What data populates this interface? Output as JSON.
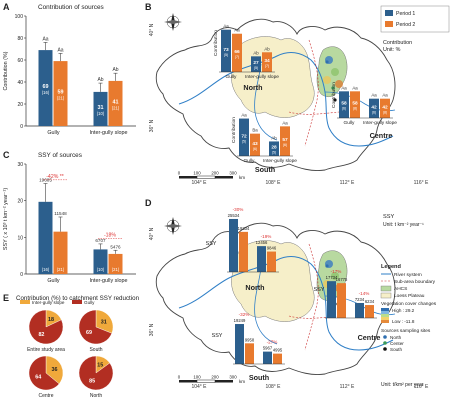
{
  "panels": {
    "A": {
      "letter": "A",
      "title": "Contribution of sources",
      "ylabel": "Contribution (%)",
      "categories": [
        "Gully",
        "Inter-gully slope"
      ],
      "yticks": [
        "0",
        "20",
        "40",
        "60",
        "80",
        "100"
      ]
    },
    "B": {
      "letter": "B",
      "legend": [
        "Period 1",
        "Period 2"
      ],
      "unit_title": "Contribution",
      "unit": "Unit: %",
      "regions": [
        "North",
        "Centre",
        "South"
      ],
      "bar_label": "Contribution",
      "lon_ticks": [
        "104° E",
        "108° E",
        "112° E",
        "116° E"
      ],
      "lat_ticks": [
        "40° N",
        "36° N"
      ],
      "scale_ticks": [
        "0",
        "100",
        "200",
        "300"
      ],
      "scale_unit": "km",
      "gully_label": "Gully",
      "slope_label": "Inter-gully slope"
    },
    "C": {
      "letter": "C",
      "title": "SSY of sources",
      "ylabel": "SSY ( x 10³ t km⁻² year⁻¹)",
      "categories": [
        "Gully",
        "Inter-gully slope"
      ],
      "yticks": [
        "0",
        "10",
        "20",
        "30"
      ],
      "changes": [
        "-42% **",
        "-18%"
      ]
    },
    "D": {
      "letter": "D",
      "unit_title": "SSY",
      "unit": "Unit: t km⁻² year⁻¹",
      "legend_title": "Legend",
      "legend_items": [
        "River system",
        "Sub-area boundary",
        "AHCS",
        "Loess Plateau"
      ],
      "veg_title": "Vegetation cover changes",
      "veg_high": "High : 29.2",
      "veg_low": "Low : -11.8",
      "sites_title": "Sources sampling sites",
      "sites": [
        "North",
        "Center",
        "South"
      ],
      "bottom_unit": "Unit: t/km² per year",
      "north_values": [
        "25534",
        "19334",
        "12456",
        "9846"
      ],
      "centre_values": [
        "17734",
        "16775",
        "7234",
        "6234"
      ],
      "south_values": [
        "19249",
        "9958",
        "5967",
        "4995"
      ],
      "north_changes": [
        "-30%",
        "-19%"
      ],
      "centre_changes": [
        "-17%",
        "-14%"
      ],
      "south_changes": [
        "-32%",
        "-27%"
      ],
      "lon_ticks": [
        "104° E",
        "108° E",
        "112° E",
        "116° E"
      ],
      "lat_ticks": [
        "40° N",
        "36° N"
      ],
      "scale_ticks": [
        "0",
        "100",
        "200",
        "300"
      ],
      "scale_unit": "km"
    },
    "E": {
      "letter": "E",
      "title": "Contribution (%) to catchment SSY reduction",
      "legend": [
        "Inter-gully slope",
        "Gully"
      ]
    }
  },
  "chart_data": [
    {
      "type": "bar",
      "id": "A",
      "title": "Contribution of sources",
      "ylabel": "Contribution (%)",
      "ylim": [
        0,
        100
      ],
      "categories": [
        "Gully",
        "Inter-gully slope"
      ],
      "series": [
        {
          "name": "Period 1",
          "values": [
            69,
            31
          ],
          "labels": [
            "69",
            "31"
          ],
          "n": [
            "(16)",
            "(10)"
          ],
          "err": [
            7,
            8
          ],
          "letters": [
            "Aa",
            "Ab"
          ]
        },
        {
          "name": "Period 2",
          "values": [
            59,
            41
          ],
          "labels": [
            "59",
            "41"
          ],
          "n": [
            "(21)",
            "(21)"
          ],
          "err": [
            7,
            7
          ],
          "letters": [
            "Aa",
            "Ab"
          ]
        }
      ],
      "colors": [
        "#2c5f8d",
        "#e87a2e"
      ]
    },
    {
      "type": "bar",
      "id": "C",
      "title": "SSY of sources",
      "ylabel": "SSY ( x 10³ t km⁻² year⁻¹)",
      "ylim": [
        0,
        30
      ],
      "categories": [
        "Gully",
        "Inter-gully slope"
      ],
      "series": [
        {
          "name": "Period 1",
          "values": [
            19.685,
            6.707
          ],
          "labels": [
            "19685",
            "6707"
          ],
          "n": [
            "(16)",
            "(10)"
          ],
          "err": [
            5,
            1.5
          ]
        },
        {
          "name": "Period 2",
          "values": [
            11.548,
            5.476
          ],
          "labels": [
            "11548",
            "5476"
          ],
          "n": [
            "(21)",
            "(21)"
          ],
          "err": [
            4,
            1
          ]
        }
      ],
      "colors": [
        "#2c5f8d",
        "#e87a2e"
      ]
    },
    {
      "type": "bar",
      "id": "B-North",
      "ylim": [
        0,
        100
      ],
      "categories": [
        "Gully",
        "Inter-gully slope"
      ],
      "series": [
        {
          "name": "Period 1",
          "values": [
            73,
            27
          ],
          "labels": [
            "73",
            "27"
          ],
          "n": [
            "(5)",
            "(5)"
          ],
          "letters": [
            "Aa",
            "Ab"
          ]
        },
        {
          "name": "Period 2",
          "values": [
            66,
            34
          ],
          "labels": [
            "66",
            "34"
          ],
          "n": [
            "(7)",
            "(7)"
          ],
          "letters": [
            "Aa",
            "Ab"
          ]
        }
      ]
    },
    {
      "type": "bar",
      "id": "B-Centre",
      "ylim": [
        0,
        100
      ],
      "categories": [
        "Gully",
        "Inter-gully slope"
      ],
      "series": [
        {
          "name": "Period 1",
          "values": [
            58,
            42
          ],
          "labels": [
            "58",
            "42"
          ],
          "n": [
            "(6)",
            "(6)"
          ],
          "letters": [
            "Aa",
            "Aa"
          ]
        },
        {
          "name": "Period 2",
          "values": [
            58,
            42
          ],
          "labels": [
            "58",
            "42"
          ],
          "n": [
            "(8)",
            "(8)"
          ],
          "letters": [
            "Aa",
            "Aa"
          ]
        }
      ]
    },
    {
      "type": "bar",
      "id": "B-South",
      "ylim": [
        0,
        100
      ],
      "categories": [
        "Gully",
        "Inter-gully slope"
      ],
      "series": [
        {
          "name": "Period 1",
          "values": [
            72,
            28
          ],
          "labels": [
            "72",
            "28"
          ],
          "n": [
            "(5)",
            "(5)"
          ],
          "letters": [
            "Aa",
            "Ab"
          ]
        },
        {
          "name": "Period 2",
          "values": [
            43,
            57
          ],
          "labels": [
            "43",
            "57"
          ],
          "n": [
            "(6)",
            "(6)"
          ],
          "letters": [
            "Ba",
            "Aa"
          ]
        }
      ]
    },
    {
      "type": "pie",
      "id": "E",
      "slices": [
        {
          "label": "Entire study area",
          "values": [
            18,
            82
          ]
        },
        {
          "label": "South",
          "values": [
            31,
            69
          ]
        },
        {
          "label": "Centre",
          "values": [
            36,
            64
          ]
        },
        {
          "label": "North",
          "values": [
            15,
            85
          ]
        }
      ],
      "series_names": [
        "Inter-gully slope",
        "Gully"
      ],
      "colors": [
        "#f0a93b",
        "#b22e22"
      ]
    }
  ]
}
